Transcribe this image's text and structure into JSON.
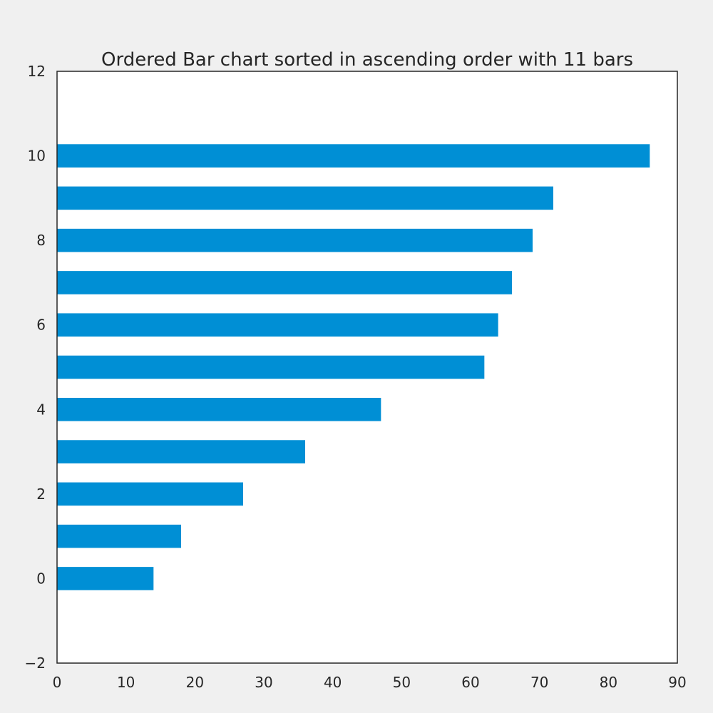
{
  "chart_data": {
    "type": "bar",
    "orientation": "horizontal",
    "title": "Ordered Bar chart sorted in ascending order with 11 bars",
    "xlabel": "",
    "ylabel": "",
    "categories": [
      0,
      1,
      2,
      3,
      4,
      5,
      6,
      7,
      8,
      9,
      10
    ],
    "values": [
      14,
      18,
      27,
      36,
      47,
      62,
      64,
      66,
      69,
      72,
      86
    ],
    "xlim": [
      0,
      90
    ],
    "ylim": [
      -2,
      12
    ],
    "x_ticks": [
      "0",
      "10",
      "20",
      "30",
      "40",
      "50",
      "60",
      "70",
      "80",
      "90"
    ],
    "y_ticks": [
      "−2",
      "0",
      "2",
      "4",
      "6",
      "8",
      "10",
      "12"
    ],
    "grid": false,
    "legend": "none",
    "bar_color": "#008fd5",
    "background_color": "#f0f0f0",
    "plot_background_color": "#ffffff"
  }
}
